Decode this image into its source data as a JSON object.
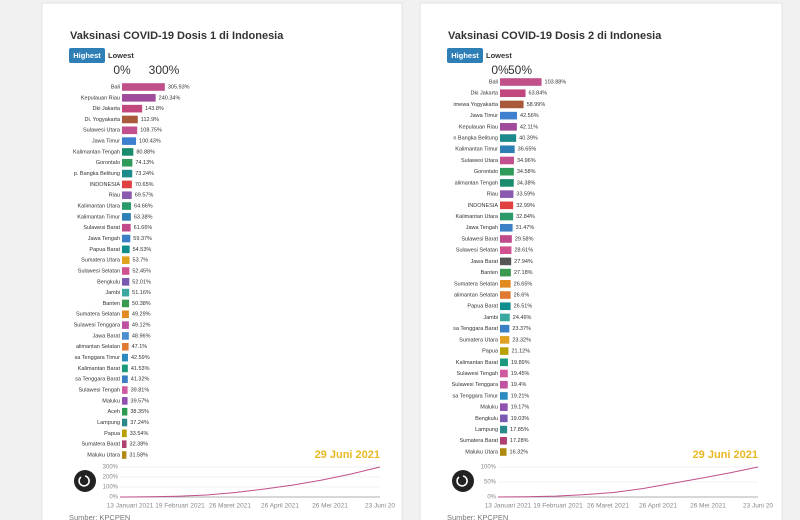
{
  "chart_data": [
    {
      "type": "bar",
      "orientation": "horizontal",
      "title": "Vaksinasi COVID-19 Dosis 1 di Indonesia",
      "buttons": [
        "Highest",
        "Lowest"
      ],
      "categories": [
        "Bali",
        "Kepulauan Riau",
        "Dki Jakarta",
        "Di. Yogyakarta",
        "Sulawesi Utara",
        "Jawa Timur",
        "Kalimantan Tengah",
        "Gorontalo",
        "p. Bangka Belitung",
        "INDONESIA",
        "Riau",
        "Kalimantan Utara",
        "Kalimantan Timur",
        "Sulawesi Barat",
        "Jawa Tengah",
        "Papua Barat",
        "Sumatera Utara",
        "Sulawesi Selatan",
        "Bengkulu",
        "Jambi",
        "Banten",
        "Sumatera Selatan",
        "Sulawesi Tenggara",
        "Jawa Barat",
        "alimantan Selatan",
        "sa Tenggara Timur",
        "Kalimantan Barat",
        "sa Tenggara Barat",
        "Sulawesi Tengah",
        "Maluku",
        "Aceh",
        "Lampung",
        "Papua",
        "Sumatera Barat",
        "Maluku Utara"
      ],
      "values": [
        305.93,
        240.34,
        143.8,
        112.9,
        108.75,
        100.43,
        80.88,
        74.13,
        73.24,
        70.65,
        69.57,
        64.66,
        63.38,
        61.66,
        59.37,
        54.53,
        53.7,
        52.45,
        52.01,
        51.16,
        50.38,
        49.29,
        49.12,
        48.96,
        47.1,
        42.59,
        41.53,
        41.32,
        39.81,
        39.57,
        38.35,
        37.24,
        33.54,
        32.38,
        31.58
      ],
      "value_labels": [
        "305.93%",
        "240.34%",
        "143.8%",
        "112.9%",
        "108.75%",
        "100.43%",
        "80.88%",
        "74.13%",
        "73.24%",
        "70.65%",
        "69.57%",
        "64.66%",
        "63.38%",
        "61.66%",
        "59.37%",
        "54.53%",
        "53.7%",
        "52.45%",
        "52.01%",
        "51.16%",
        "50.38%",
        "49.29%",
        "49.12%",
        "48.96%",
        "47.1%",
        "42.59%",
        "41.53%",
        "41.32%",
        "39.81%",
        "39.57%",
        "38.35%",
        "37.24%",
        "33.54%",
        "32.38%",
        "31.58%"
      ],
      "colors": [
        "#c0508a",
        "#a04a9c",
        "#c2477d",
        "#a85a3a",
        "#c3508e",
        "#3f7fd0",
        "#1a8c6e",
        "#2e9b5a",
        "#1c8a8a",
        "#e04040",
        "#8a5ab0",
        "#2a9a6a",
        "#2f7fb7",
        "#c04a8a",
        "#3b7fc4",
        "#0f8d8d",
        "#e0a020",
        "#d05090",
        "#7a5ab0",
        "#3aa8a0",
        "#3a9a50",
        "#e08a20",
        "#c050a0",
        "#4a8fd0",
        "#e07a30",
        "#2a8ac0",
        "#1a9a7a",
        "#3a7fc4",
        "#d05aa0",
        "#9050b0",
        "#2a9a50",
        "#2a8a8a",
        "#b8a000",
        "#b04070",
        "#b08a10"
      ],
      "xlim": [
        0,
        300
      ],
      "xticks": [
        {
          "value": 0,
          "label": "0%"
        },
        {
          "value": 300,
          "label": "300%"
        }
      ],
      "date_label": "29 Juni 2021",
      "timeline": {
        "ylim": [
          0,
          300
        ],
        "yticks": [
          {
            "value": 0,
            "label": "0%"
          },
          {
            "value": 100,
            "label": "100%"
          },
          {
            "value": 200,
            "label": "200%"
          },
          {
            "value": 300,
            "label": "300%"
          }
        ],
        "x_labels": [
          "13 Januari 2021",
          "19 Februari 2021",
          "26 Maret 2021",
          "26 April 2021",
          "26 Mei 2021",
          "23 Juni 20"
        ],
        "values": [
          0,
          2,
          8,
          20,
          45,
          80,
          120,
          170,
          230,
          300
        ],
        "color": "#c0508a"
      },
      "source": "Sumber: KPCPEN"
    },
    {
      "type": "bar",
      "orientation": "horizontal",
      "title": "Vaksinasi COVID-19 Dosis 2 di Indonesia",
      "buttons": [
        "Highest",
        "Lowest"
      ],
      "categories": [
        "Bali",
        "Dki Jakarta",
        "imewa Yogyakarta",
        "Jawa Timur",
        "Kepulauan Riau",
        "n Bangka Belitung",
        "Kalimantan Timur",
        "Sulawesi Utara",
        "Gorontalo",
        "alimantan Tengah",
        "Riau",
        "INDONESIA",
        "Kalimantan Utara",
        "Jawa Tengah",
        "Sulawesi Barat",
        "Sulawesi Selatan",
        "Jawa Barat",
        "Banten",
        "Sumatera Selatan",
        "alimantan Selatan",
        "Papua Barat",
        "Jambi",
        "sa Tenggara Barat",
        "Sumatera Utara",
        "Papua",
        "Kalimantan Barat",
        "Sulawesi Tengah",
        "Sulawesi Tenggara",
        "sa Tenggara Timur",
        "Maluku",
        "Bengkulu",
        "Lampung",
        "Sumatera Barat",
        "Maluku Utara"
      ],
      "values": [
        103.88,
        63.84,
        58.99,
        42.56,
        42.11,
        40.39,
        36.65,
        34.96,
        34.58,
        34.38,
        33.59,
        32.99,
        32.84,
        31.47,
        29.58,
        28.61,
        27.94,
        27.18,
        26.65,
        26.6,
        26.51,
        24.46,
        23.37,
        23.32,
        21.12,
        19.89,
        19.45,
        19.4,
        19.21,
        19.17,
        19.03,
        17.85,
        17.28,
        16.32
      ],
      "value_labels": [
        "103.88%",
        "63.84%",
        "58.99%",
        "42.56%",
        "42.11%",
        "40.39%",
        "36.65%",
        "34.96%",
        "34.58%",
        "34.38%",
        "33.59%",
        "32.99%",
        "32.84%",
        "31.47%",
        "29.58%",
        "28.61%",
        "27.94%",
        "27.18%",
        "26.65%",
        "26.6%",
        "26.51%",
        "24.46%",
        "23.37%",
        "23.32%",
        "21.12%",
        "19.89%",
        "19.45%",
        "19.4%",
        "19.21%",
        "19.17%",
        "19.03%",
        "17.85%",
        "17.28%",
        "16.32%"
      ],
      "colors": [
        "#c0508a",
        "#c2477d",
        "#a85a3a",
        "#3f7fd0",
        "#a04a9c",
        "#1c8a8a",
        "#2f7fb7",
        "#c3508e",
        "#2e9b5a",
        "#1a8c6e",
        "#8a5ab0",
        "#e04040",
        "#2a9a6a",
        "#3b7fc4",
        "#c04a8a",
        "#d05090",
        "#555555",
        "#3a9a50",
        "#e08a20",
        "#e07a30",
        "#0f8d8d",
        "#3aa8a0",
        "#3a7fc4",
        "#e0a020",
        "#b8a000",
        "#1a9a7a",
        "#d05aa0",
        "#c050a0",
        "#2a8ac0",
        "#9050b0",
        "#7a5ab0",
        "#2a8a8a",
        "#b04070",
        "#b08a10"
      ],
      "xlim": [
        0,
        50
      ],
      "xticks": [
        {
          "value": 0,
          "label": "0%"
        },
        {
          "value": 50,
          "label": "50%"
        }
      ],
      "date_label": "29 Juni 2021",
      "timeline": {
        "ylim": [
          0,
          100
        ],
        "yticks": [
          {
            "value": 0,
            "label": "0%"
          },
          {
            "value": 50,
            "label": "50%"
          },
          {
            "value": 100,
            "label": "100%"
          }
        ],
        "x_labels": [
          "13 Januari 2021",
          "19 Februari 2021",
          "26 Maret 2021",
          "26 April 2021",
          "26 Mei 2021",
          "23 Juni 20"
        ],
        "values": [
          0,
          1,
          3,
          8,
          15,
          28,
          45,
          62,
          80,
          100
        ],
        "color": "#c0508a"
      },
      "source": "Sumber: KPCPEN"
    }
  ]
}
